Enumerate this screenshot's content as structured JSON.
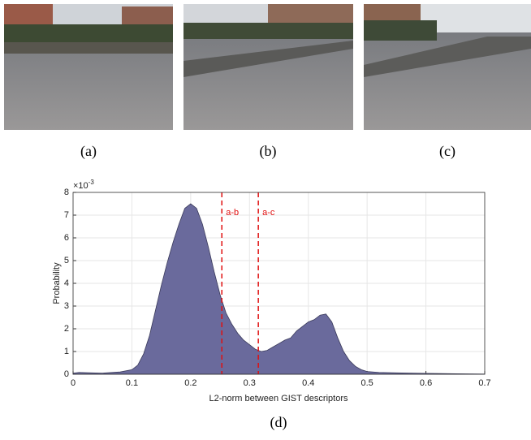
{
  "figure": {
    "panels": [
      {
        "caption": "(a)"
      },
      {
        "caption": "(b)"
      },
      {
        "caption": "(c)"
      }
    ],
    "chart_caption": "(d)"
  },
  "chart_data": {
    "type": "area",
    "x_label": "L2-norm between GIST descriptors",
    "y_label": "Probability",
    "y_multiplier": {
      "base": "×10",
      "exponent": "-3"
    },
    "color": "#6a6a9c",
    "x": [
      0,
      0.01,
      0.02,
      0.05,
      0.08,
      0.1,
      0.11,
      0.12,
      0.13,
      0.14,
      0.15,
      0.16,
      0.17,
      0.18,
      0.19,
      0.2,
      0.21,
      0.22,
      0.23,
      0.24,
      0.25,
      0.26,
      0.27,
      0.28,
      0.29,
      0.3,
      0.31,
      0.32,
      0.33,
      0.34,
      0.35,
      0.36,
      0.37,
      0.38,
      0.39,
      0.4,
      0.41,
      0.42,
      0.43,
      0.44,
      0.45,
      0.46,
      0.47,
      0.48,
      0.49,
      0.5,
      0.52,
      0.55,
      0.6,
      0.65,
      0.7
    ],
    "values": [
      0.05,
      0.08,
      0.07,
      0.05,
      0.1,
      0.2,
      0.4,
      0.9,
      1.7,
      2.8,
      3.9,
      4.9,
      5.8,
      6.6,
      7.3,
      7.5,
      7.3,
      6.6,
      5.6,
      4.5,
      3.5,
      2.7,
      2.2,
      1.8,
      1.5,
      1.3,
      1.1,
      1.0,
      1.05,
      1.2,
      1.35,
      1.5,
      1.6,
      1.9,
      2.1,
      2.3,
      2.4,
      2.6,
      2.65,
      2.3,
      1.6,
      1.0,
      0.6,
      0.35,
      0.2,
      0.12,
      0.08,
      0.06,
      0.04,
      0.02,
      0.01
    ],
    "vlines": [
      {
        "x": 0.253,
        "label": "a-b",
        "color": "#e01010"
      },
      {
        "x": 0.315,
        "label": "a-c",
        "color": "#e01010"
      }
    ],
    "xlim": [
      0,
      0.7
    ],
    "xticks": [
      0,
      0.1,
      0.2,
      0.3,
      0.4,
      0.5,
      0.6,
      0.7
    ],
    "ylim": [
      0,
      8
    ],
    "yticks": [
      0,
      1,
      2,
      3,
      4,
      5,
      6,
      7,
      8
    ],
    "grid": true
  }
}
